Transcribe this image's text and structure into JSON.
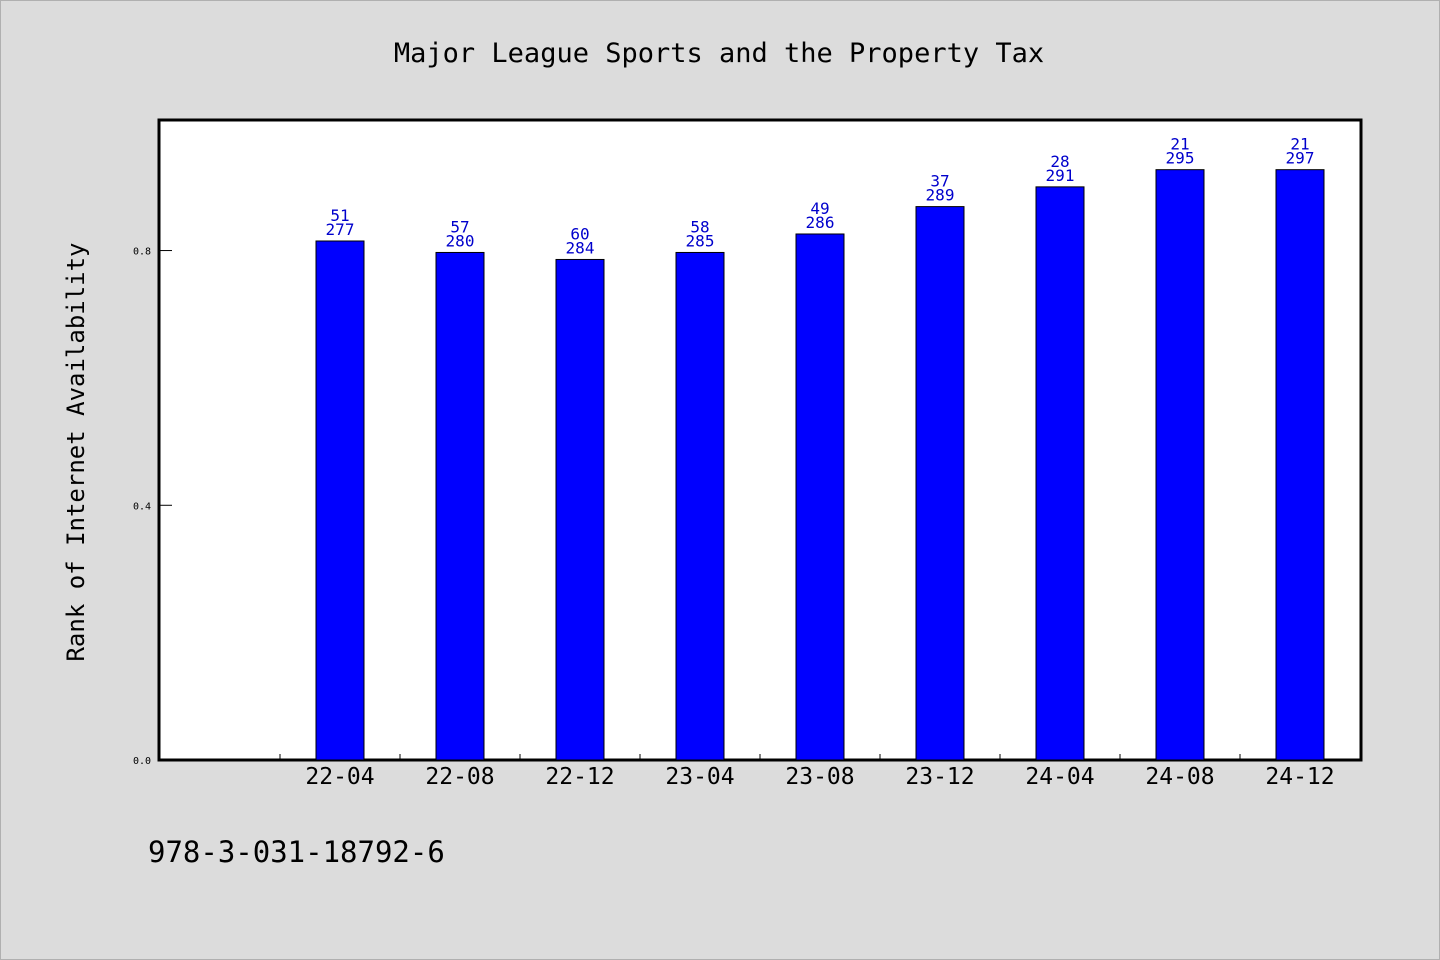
{
  "chart_data": {
    "type": "bar",
    "title": "Major League Sports and the Property Tax",
    "ylabel": "Rank of Internet Availability",
    "xlabel": "",
    "footer_text": "978-3-031-18792-6",
    "categories": [
      "22-04",
      "22-08",
      "22-12",
      "23-04",
      "23-08",
      "23-12",
      "24-04",
      "24-08",
      "24-12"
    ],
    "values": [
      0.815,
      0.797,
      0.786,
      0.797,
      0.826,
      0.869,
      0.9,
      0.927,
      0.927
    ],
    "labels_top": [
      "51",
      "57",
      "60",
      "58",
      "49",
      "37",
      "28",
      "21",
      "21"
    ],
    "labels_bottom": [
      "277",
      "280",
      "284",
      "285",
      "286",
      "289",
      "291",
      "295",
      "297"
    ],
    "y_ticks": [
      "0.0",
      "0.4",
      "0.8"
    ],
    "ylim": [
      0,
      1.005
    ],
    "bar_color": "#0000ff",
    "label_color": "#0000cc",
    "background_color": "#dcdcdc",
    "plot_background": "#ffffff",
    "grid": false,
    "legend": "none"
  }
}
